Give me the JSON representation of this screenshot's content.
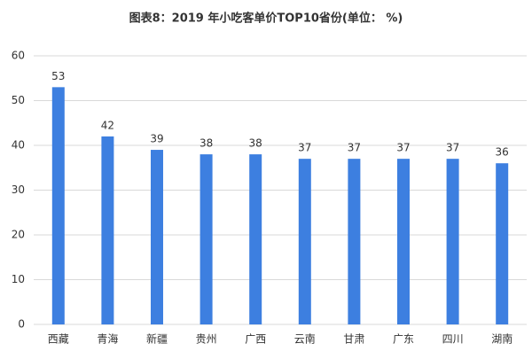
{
  "chart_data": {
    "type": "bar",
    "title": "图表8：2019 年小吃客单价TOP10省份(单位： %)",
    "categories": [
      "西藏",
      "青海",
      "新疆",
      "贵州",
      "广西",
      "云南",
      "甘肃",
      "广东",
      "四川",
      "湖南"
    ],
    "values": [
      53,
      42,
      39,
      38,
      38,
      37,
      37,
      37,
      37,
      36
    ],
    "color": "#3d7fe0",
    "ylim": [
      0,
      60
    ],
    "yticks": [
      0,
      10,
      20,
      30,
      40,
      50,
      60
    ],
    "grid": true
  }
}
